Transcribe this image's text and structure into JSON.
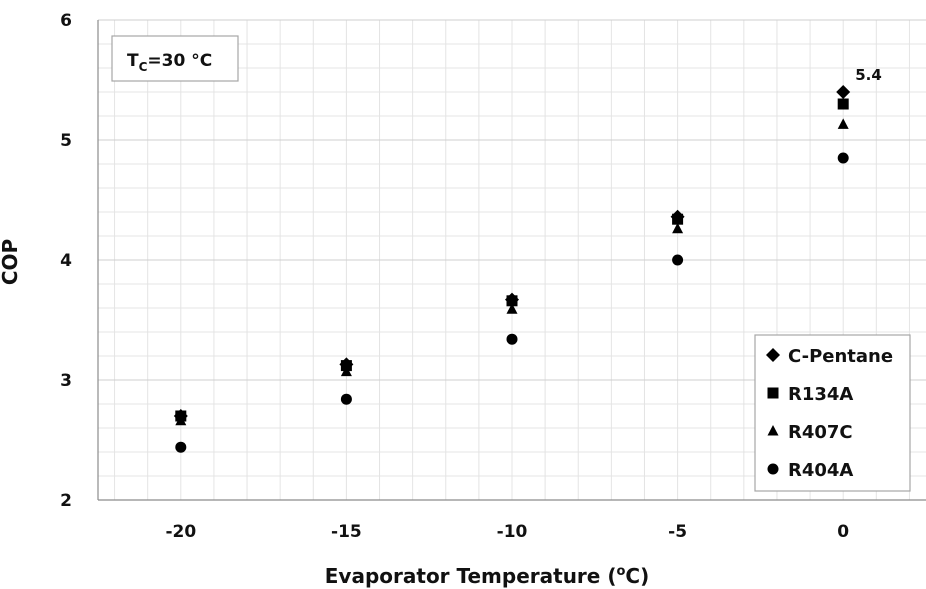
{
  "chart_data": {
    "type": "scatter",
    "title": "",
    "xlabel": "Evaporator Temperature (",
    "xlabel_sup": "o",
    "xlabel_tail": "C)",
    "ylabel": "COP",
    "xlim": [
      -22.5,
      2.5
    ],
    "ylim": [
      2,
      6
    ],
    "x_ticks": [
      -20,
      -15,
      -10,
      -5,
      0
    ],
    "x_tick_labels": [
      "-20",
      "-15",
      "-10",
      "-5",
      "0"
    ],
    "y_ticks": [
      2,
      3,
      4,
      5,
      6
    ],
    "y_tick_labels": [
      "2",
      "3",
      "4",
      "5",
      "6"
    ],
    "grid": true,
    "legend_position": "bottom-right",
    "series": [
      {
        "name": "C-Pentane",
        "marker": "diamond",
        "color": "#000000",
        "x": [
          -20,
          -15,
          -10,
          -5,
          0
        ],
        "y": [
          2.7,
          3.13,
          3.67,
          4.36,
          5.4
        ]
      },
      {
        "name": "R134A",
        "marker": "square",
        "color": "#000000",
        "x": [
          -20,
          -15,
          -10,
          -5,
          0
        ],
        "y": [
          2.7,
          3.12,
          3.66,
          4.34,
          5.3
        ]
      },
      {
        "name": "R407C",
        "marker": "triangle",
        "color": "#000000",
        "x": [
          -20,
          -15,
          -10,
          -5,
          0
        ],
        "y": [
          2.66,
          3.07,
          3.59,
          4.26,
          5.13
        ]
      },
      {
        "name": "R404A",
        "marker": "circle",
        "color": "#000000",
        "x": [
          -20,
          -15,
          -10,
          -5,
          0
        ],
        "y": [
          2.44,
          2.84,
          3.34,
          4.0,
          4.85
        ]
      }
    ],
    "annotations": [
      {
        "text": "5.4",
        "x": 0,
        "y": 5.4
      }
    ],
    "condition_box": {
      "main": "T",
      "sub": "C",
      "rest": "=30 °C"
    }
  }
}
